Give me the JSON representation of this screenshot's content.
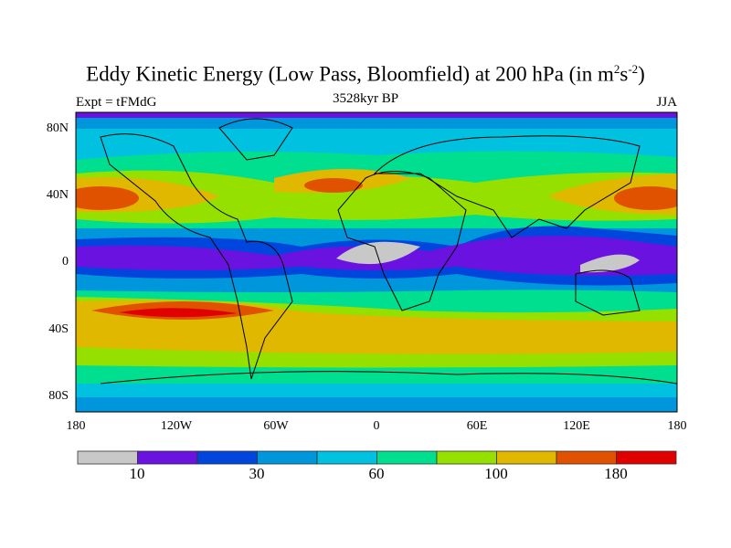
{
  "title": {
    "main": "Eddy Kinetic Energy (Low Pass, Bloomfield) at 200 hPa (in m",
    "sup1": "2",
    "mid": "s",
    "sup2": "-2",
    "end": ")"
  },
  "subtitle_left": "Expt = tFMdG",
  "subtitle_center": "3528kyr BP",
  "subtitle_right": "JJA",
  "lat_labels": [
    "80N",
    "40N",
    "0",
    "40S",
    "80S"
  ],
  "lon_labels": [
    "180",
    "120W",
    "60W",
    "0",
    "60E",
    "120E",
    "180"
  ],
  "colorbar": {
    "colors": [
      "#c8c8c8",
      "#6a12e0",
      "#0046dc",
      "#0096dc",
      "#00c2e0",
      "#00de90",
      "#96e000",
      "#e0b800",
      "#e05200",
      "#e00000"
    ],
    "labels": [
      "10",
      "30",
      "60",
      "100",
      "180"
    ]
  }
}
